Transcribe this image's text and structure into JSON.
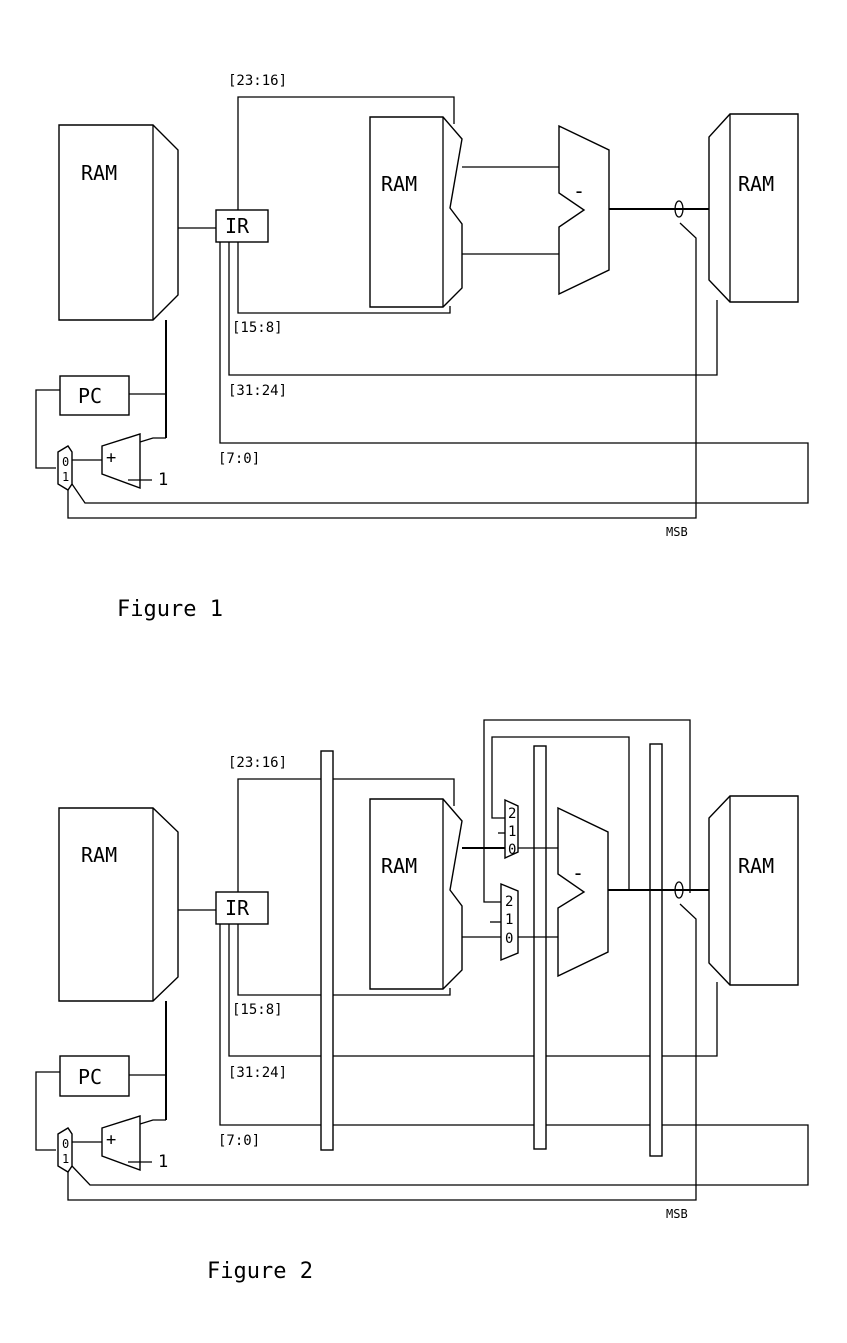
{
  "figure1": {
    "caption": "Figure 1",
    "ram_left": "RAM",
    "ram_mid": "RAM",
    "ram_right": "RAM",
    "ir": "IR",
    "pc": "PC",
    "subtract": "-",
    "adder": "+",
    "const_one": "1",
    "mux_in0": "0",
    "mux_in1": "1",
    "ctl_zero": "0",
    "bits_23_16": "[23:16]",
    "bits_15_8": "[15:8]",
    "bits_31_24": "[31:24]",
    "bits_7_0": "[7:0]",
    "msb": "MSB"
  },
  "figure2": {
    "caption": "Figure 2",
    "ram_left": "RAM",
    "ram_mid": "RAM",
    "ram_right": "RAM",
    "ir": "IR",
    "pc": "PC",
    "subtract": "-",
    "adder": "+",
    "const_one": "1",
    "mux_in0": "0",
    "mux_in1": "1",
    "ctl_zero": "0",
    "mux3a": [
      "2",
      "1",
      "0"
    ],
    "mux3b": [
      "2",
      "1",
      "0"
    ],
    "bits_23_16": "[23:16]",
    "bits_15_8": "[15:8]",
    "bits_31_24": "[31:24]",
    "bits_7_0": "[7:0]",
    "msb": "MSB"
  }
}
